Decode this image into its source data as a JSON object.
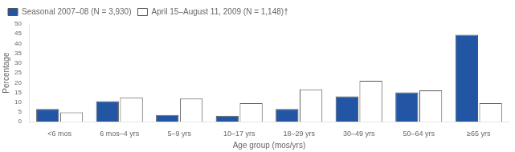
{
  "chart_data": {
    "type": "bar",
    "categories": [
      "<6 mos",
      "6 mos–4 yrs",
      "5–9 yrs",
      "10–17 yrs",
      "18–29 yrs",
      "30–49 yrs",
      "50–64 yrs",
      "≥65 yrs"
    ],
    "series": [
      {
        "name": "Seasonal 2007–08 (N = 3,930)",
        "color": "#2255A4",
        "values": [
          6.5,
          10.5,
          3.5,
          3.0,
          6.5,
          13.0,
          15.0,
          44.5
        ]
      },
      {
        "name": "April 15–August 11, 2009 (N = 1,148)†",
        "color": "#FFFFFF",
        "values": [
          4.8,
          12.5,
          11.8,
          9.5,
          16.5,
          21.0,
          16.0,
          9.5
        ]
      }
    ],
    "xlabel": "Age group (mos/yrs)",
    "ylabel": "Percentage",
    "ylim": [
      0,
      50
    ],
    "yticks": [
      0,
      5,
      10,
      15,
      20,
      25,
      30,
      35,
      40,
      45,
      50
    ],
    "grid": false,
    "legend": "upper left"
  }
}
